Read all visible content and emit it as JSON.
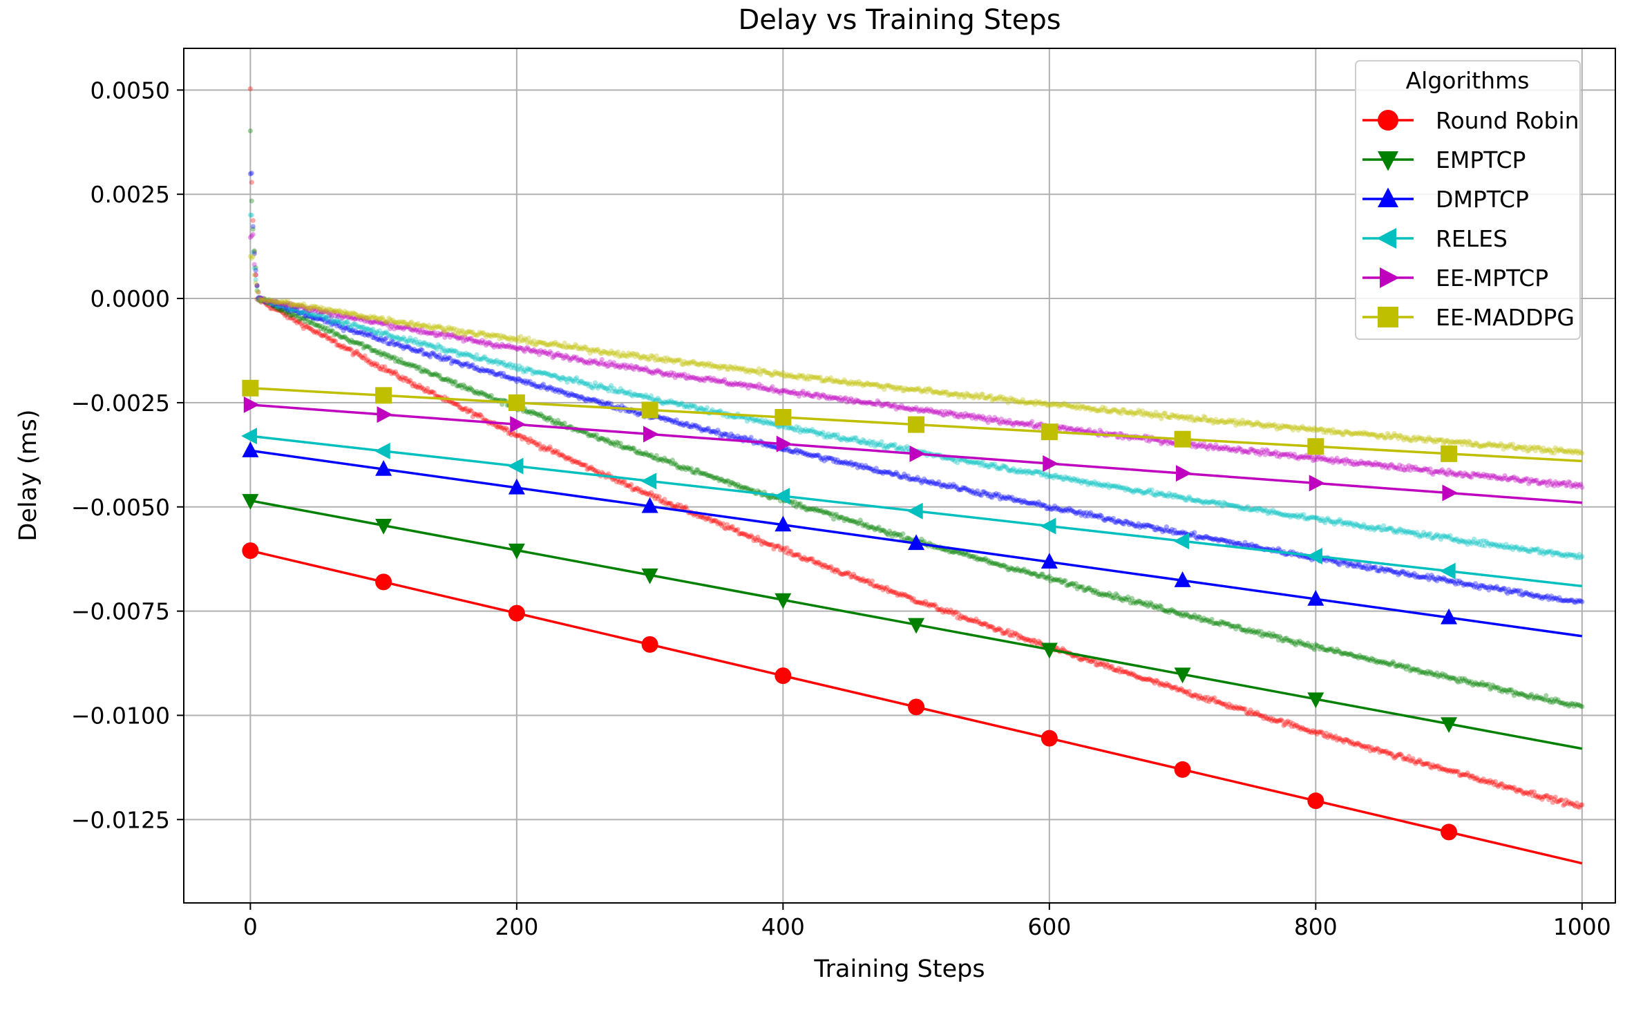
{
  "chart_data": {
    "type": "line",
    "title": "Delay vs Training Steps",
    "xlabel": "Training Steps",
    "ylabel": "Delay (ms)",
    "xlim": [
      -50,
      1025
    ],
    "ylim": [
      -0.0145,
      0.006
    ],
    "grid": true,
    "x_ticks": [
      0,
      200,
      400,
      600,
      800,
      1000
    ],
    "x_tick_labels": [
      "0",
      "200",
      "400",
      "600",
      "800",
      "1000"
    ],
    "y_ticks": [
      0.005,
      0.0025,
      0.0,
      -0.0025,
      -0.005,
      -0.0075,
      -0.01,
      -0.0125
    ],
    "y_tick_labels": [
      "0.0050",
      "0.0025",
      "0.0000",
      "−0.0025",
      "−0.0050",
      "−0.0075",
      "−0.0100",
      "−0.0125"
    ],
    "legend": {
      "title": "Algorithms",
      "placement": "top-right"
    },
    "series": [
      {
        "name": "Round Robin",
        "color": "#ff0000",
        "marker": "circle",
        "start": 0.005,
        "start_step": 0,
        "knee": 0.0,
        "knee_step": 5,
        "final": -0.0122,
        "rate": 0.0012,
        "fit_x": [
          0,
          1000
        ],
        "fit_y": [
          -0.00605,
          -0.01355
        ],
        "marker_x": [
          0,
          100,
          200,
          300,
          400,
          500,
          600,
          700,
          800,
          900
        ],
        "marker_y": [
          -0.00605,
          -0.0068,
          -0.00755,
          -0.0083,
          -0.00905,
          -0.0098,
          -0.01055,
          -0.0113,
          -0.01205,
          -0.0128
        ]
      },
      {
        "name": "EMPTCP",
        "color": "#008000",
        "marker": "triangle-down",
        "start": 0.004,
        "start_step": 0,
        "knee": 0.0,
        "knee_step": 6,
        "final": -0.0098,
        "rate": 0.0012,
        "fit_x": [
          0,
          1000
        ],
        "fit_y": [
          -0.00485,
          -0.0108
        ],
        "marker_x": [
          0,
          100,
          200,
          300,
          400,
          500,
          600,
          700,
          800,
          900
        ],
        "marker_y": [
          -0.00485,
          -0.005445,
          -0.00604,
          -0.006635,
          -0.00723,
          -0.007825,
          -0.00842,
          -0.009015,
          -0.00961,
          -0.010205
        ]
      },
      {
        "name": "DMPTCP",
        "color": "#0000ff",
        "marker": "triangle-up",
        "start": 0.003,
        "start_step": 1,
        "knee": 0.0,
        "knee_step": 6,
        "final": -0.0073,
        "rate": 0.0012,
        "fit_x": [
          0,
          1000
        ],
        "fit_y": [
          -0.00365,
          -0.0081
        ],
        "marker_x": [
          0,
          100,
          200,
          300,
          400,
          500,
          600,
          700,
          800,
          900
        ],
        "marker_y": [
          -0.00365,
          -0.004095,
          -0.00454,
          -0.004985,
          -0.00543,
          -0.005875,
          -0.00632,
          -0.006765,
          -0.00721,
          -0.007655
        ]
      },
      {
        "name": "RELES",
        "color": "#00bfbf",
        "marker": "triangle-left",
        "start": 0.002,
        "start_step": 1,
        "knee": 0.0,
        "knee_step": 6,
        "final": -0.0062,
        "rate": 0.0012,
        "fit_x": [
          0,
          1000
        ],
        "fit_y": [
          -0.0033,
          -0.0069
        ],
        "marker_x": [
          0,
          100,
          200,
          300,
          400,
          500,
          600,
          700,
          800,
          900
        ],
        "marker_y": [
          -0.0033,
          -0.00366,
          -0.00402,
          -0.00438,
          -0.00474,
          -0.0051,
          -0.00546,
          -0.00582,
          -0.00618,
          -0.00654
        ]
      },
      {
        "name": "EE-MPTCP",
        "color": "#bf00bf",
        "marker": "triangle-right",
        "start": 0.0015,
        "start_step": 2,
        "knee": 0.0,
        "knee_step": 7,
        "final": -0.0045,
        "rate": 0.0012,
        "fit_x": [
          0,
          1000
        ],
        "fit_y": [
          -0.00255,
          -0.0049
        ],
        "marker_x": [
          0,
          100,
          200,
          300,
          400,
          500,
          600,
          700,
          800,
          900
        ],
        "marker_y": [
          -0.00255,
          -0.002785,
          -0.00302,
          -0.003255,
          -0.00349,
          -0.003725,
          -0.00396,
          -0.004195,
          -0.00443,
          -0.004665
        ]
      },
      {
        "name": "EE-MADDPG",
        "color": "#bfbf00",
        "marker": "square",
        "start": 0.001,
        "start_step": 2,
        "knee": 0.0,
        "knee_step": 7,
        "final": -0.0037,
        "rate": 0.0012,
        "fit_x": [
          0,
          1000
        ],
        "fit_y": [
          -0.00215,
          -0.0039
        ],
        "marker_x": [
          0,
          100,
          200,
          300,
          400,
          500,
          600,
          700,
          800,
          900
        ],
        "marker_y": [
          -0.00215,
          -0.002325,
          -0.0025,
          -0.002675,
          -0.00285,
          -0.003025,
          -0.0032,
          -0.003375,
          -0.00355,
          -0.003725
        ]
      }
    ]
  }
}
